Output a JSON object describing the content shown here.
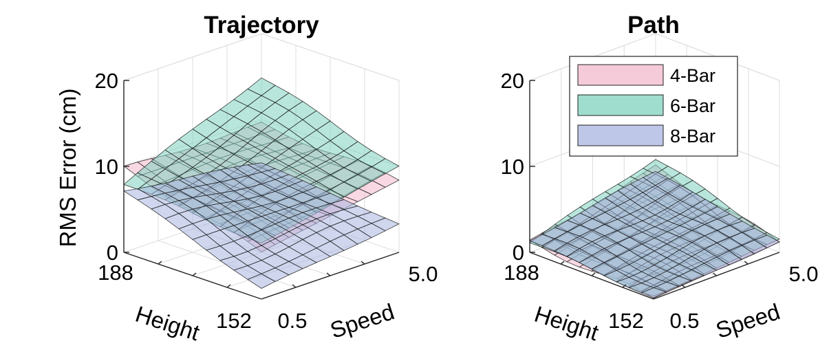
{
  "chart_data": [
    {
      "type": "surface",
      "title": "Trajectory",
      "zlabel": "RMS Error (cm)",
      "xlabel": "Height",
      "ylabel": "Speed",
      "zlim": [
        0,
        20
      ],
      "z_ticks": [
        "0",
        "10",
        "20"
      ],
      "height_range": [
        152,
        188
      ],
      "height_ticks": [
        "188",
        "152"
      ],
      "speed_range": [
        0.5,
        5.0
      ],
      "speed_ticks": [
        "0.5",
        "5.0"
      ],
      "grid": true,
      "series": [
        {
          "name": "4-Bar",
          "color": "#f2b8cc",
          "corners": {
            "h188_s0.5": 9.8,
            "h152_s0.5": 5.5,
            "h188_s5.0": 9.5,
            "h152_s5.0": 8.4
          }
        },
        {
          "name": "6-Bar",
          "color": "#7fd1bf",
          "corners": {
            "h188_s0.5": 8.0,
            "h152_s0.5": 6.5,
            "h188_s5.0": 15.0,
            "h152_s5.0": 10.0
          }
        },
        {
          "name": "8-Bar",
          "color": "#a8b4e0",
          "corners": {
            "h188_s0.5": 7.2,
            "h152_s0.5": 1.2,
            "h188_s5.0": 5.0,
            "h152_s5.0": 3.3
          }
        }
      ]
    },
    {
      "type": "surface",
      "title": "Path",
      "zlabel": "",
      "xlabel": "Height",
      "ylabel": "Speed",
      "zlim": [
        0,
        20
      ],
      "z_ticks": [
        "0",
        "10",
        "20"
      ],
      "height_range": [
        152,
        188
      ],
      "height_ticks": [
        "188",
        "152"
      ],
      "speed_range": [
        0.5,
        5.0
      ],
      "speed_ticks": [
        "0.5",
        "5.0"
      ],
      "grid": true,
      "legend": {
        "placement": "top-right",
        "entries": [
          "4-Bar",
          "6-Bar",
          "8-Bar"
        ]
      },
      "series": [
        {
          "name": "4-Bar",
          "color": "#f2b8cc",
          "corners": {
            "h188_s0.5": 1.2,
            "h152_s0.5": 0.1,
            "h188_s5.0": 4.5,
            "h152_s5.0": 1.2
          }
        },
        {
          "name": "6-Bar",
          "color": "#7fd1bf",
          "corners": {
            "h188_s0.5": 1.2,
            "h152_s0.5": 0.3,
            "h188_s5.0": 5.5,
            "h152_s5.0": 1.5
          }
        },
        {
          "name": "8-Bar",
          "color": "#a8b4e0",
          "corners": {
            "h188_s0.5": 1.4,
            "h152_s0.5": 0.1,
            "h188_s5.0": 4.0,
            "h152_s5.0": 1.2
          }
        }
      ]
    }
  ]
}
